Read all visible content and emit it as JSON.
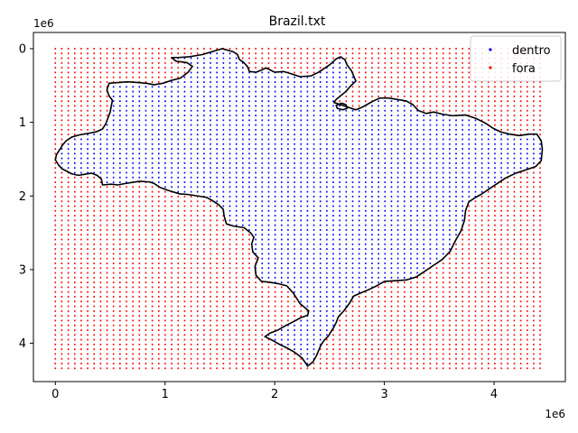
{
  "chart_data": {
    "type": "scatter",
    "title": "Brazil.txt",
    "xlabel": "",
    "ylabel": "",
    "xlim": [
      -200000,
      4650000
    ],
    "ylim": [
      4520000,
      -220000
    ],
    "y_inverted": true,
    "x_ticks": [
      0,
      1,
      2,
      3,
      4
    ],
    "y_ticks": [
      0,
      1,
      2,
      3,
      4
    ],
    "x_multiplier": "1e6",
    "y_multiplier": "1e6",
    "grid": false,
    "legend_position": "top-right",
    "grid_points": {
      "x_start": 0,
      "x_end": 4420000,
      "x_count": 76,
      "y_start": 0,
      "y_end": 4340000,
      "y_count": 68
    },
    "series": [
      {
        "name": "dentro",
        "color": "#0000ff",
        "marker": "point"
      },
      {
        "name": "fora",
        "color": "#ff0000",
        "marker": "point"
      }
    ],
    "boundary_color": "#000000",
    "boundary": [
      [
        1520000,
        0
      ],
      [
        1620000,
        40000
      ],
      [
        1660000,
        80000
      ],
      [
        1680000,
        150000
      ],
      [
        1720000,
        190000
      ],
      [
        1750000,
        240000
      ],
      [
        1770000,
        310000
      ],
      [
        1830000,
        320000
      ],
      [
        1880000,
        290000
      ],
      [
        1920000,
        260000
      ],
      [
        1960000,
        290000
      ],
      [
        2000000,
        320000
      ],
      [
        2080000,
        310000
      ],
      [
        2150000,
        340000
      ],
      [
        2230000,
        380000
      ],
      [
        2330000,
        370000
      ],
      [
        2400000,
        320000
      ],
      [
        2500000,
        220000
      ],
      [
        2560000,
        140000
      ],
      [
        2600000,
        110000
      ],
      [
        2640000,
        150000
      ],
      [
        2660000,
        220000
      ],
      [
        2700000,
        300000
      ],
      [
        2740000,
        440000
      ],
      [
        2690000,
        510000
      ],
      [
        2650000,
        580000
      ],
      [
        2600000,
        640000
      ],
      [
        2560000,
        690000
      ],
      [
        2540000,
        730000
      ],
      [
        2600000,
        760000
      ],
      [
        2660000,
        790000
      ],
      [
        2700000,
        810000
      ],
      [
        2740000,
        830000
      ],
      [
        2790000,
        800000
      ],
      [
        2840000,
        760000
      ],
      [
        2900000,
        710000
      ],
      [
        2960000,
        670000
      ],
      [
        3040000,
        670000
      ],
      [
        3120000,
        690000
      ],
      [
        3200000,
        710000
      ],
      [
        3260000,
        760000
      ],
      [
        3310000,
        840000
      ],
      [
        3380000,
        880000
      ],
      [
        3450000,
        860000
      ],
      [
        3530000,
        890000
      ],
      [
        3620000,
        910000
      ],
      [
        3740000,
        900000
      ],
      [
        3840000,
        950000
      ],
      [
        3920000,
        1010000
      ],
      [
        3990000,
        1080000
      ],
      [
        4060000,
        1130000
      ],
      [
        4140000,
        1160000
      ],
      [
        4230000,
        1180000
      ],
      [
        4320000,
        1160000
      ],
      [
        4390000,
        1160000
      ],
      [
        4430000,
        1250000
      ],
      [
        4440000,
        1370000
      ],
      [
        4430000,
        1520000
      ],
      [
        4380000,
        1600000
      ],
      [
        4300000,
        1640000
      ],
      [
        4200000,
        1690000
      ],
      [
        4100000,
        1760000
      ],
      [
        4020000,
        1840000
      ],
      [
        3940000,
        1920000
      ],
      [
        3880000,
        1980000
      ],
      [
        3830000,
        2020000
      ],
      [
        3770000,
        2080000
      ],
      [
        3740000,
        2200000
      ],
      [
        3730000,
        2330000
      ],
      [
        3700000,
        2470000
      ],
      [
        3650000,
        2600000
      ],
      [
        3600000,
        2750000
      ],
      [
        3530000,
        2860000
      ],
      [
        3450000,
        2940000
      ],
      [
        3370000,
        3020000
      ],
      [
        3290000,
        3100000
      ],
      [
        3200000,
        3140000
      ],
      [
        3100000,
        3150000
      ],
      [
        3000000,
        3160000
      ],
      [
        2930000,
        3220000
      ],
      [
        2860000,
        3270000
      ],
      [
        2780000,
        3320000
      ],
      [
        2720000,
        3360000
      ],
      [
        2680000,
        3460000
      ],
      [
        2630000,
        3560000
      ],
      [
        2580000,
        3640000
      ],
      [
        2560000,
        3720000
      ],
      [
        2540000,
        3780000
      ],
      [
        2510000,
        3850000
      ],
      [
        2490000,
        3900000
      ],
      [
        2450000,
        3960000
      ],
      [
        2420000,
        4030000
      ],
      [
        2400000,
        4100000
      ],
      [
        2380000,
        4170000
      ],
      [
        2350000,
        4250000
      ],
      [
        2300000,
        4310000
      ],
      [
        2250000,
        4200000
      ],
      [
        2180000,
        4120000
      ],
      [
        2120000,
        4070000
      ],
      [
        2050000,
        4020000
      ],
      [
        1980000,
        3960000
      ],
      [
        1910000,
        3910000
      ],
      [
        1960000,
        3860000
      ],
      [
        2030000,
        3820000
      ],
      [
        2100000,
        3760000
      ],
      [
        2180000,
        3700000
      ],
      [
        2240000,
        3650000
      ],
      [
        2300000,
        3620000
      ],
      [
        2310000,
        3560000
      ],
      [
        2270000,
        3510000
      ],
      [
        2230000,
        3460000
      ],
      [
        2200000,
        3390000
      ],
      [
        2170000,
        3320000
      ],
      [
        2140000,
        3270000
      ],
      [
        2110000,
        3220000
      ],
      [
        2030000,
        3190000
      ],
      [
        1950000,
        3170000
      ],
      [
        1880000,
        3160000
      ],
      [
        1830000,
        3080000
      ],
      [
        1820000,
        2960000
      ],
      [
        1850000,
        2840000
      ],
      [
        1800000,
        2760000
      ],
      [
        1790000,
        2650000
      ],
      [
        1810000,
        2560000
      ],
      [
        1780000,
        2500000
      ],
      [
        1720000,
        2430000
      ],
      [
        1630000,
        2410000
      ],
      [
        1560000,
        2380000
      ],
      [
        1540000,
        2280000
      ],
      [
        1530000,
        2180000
      ],
      [
        1490000,
        2120000
      ],
      [
        1430000,
        2060000
      ],
      [
        1380000,
        2020000
      ],
      [
        1300000,
        2000000
      ],
      [
        1210000,
        1980000
      ],
      [
        1130000,
        1970000
      ],
      [
        1020000,
        1920000
      ],
      [
        950000,
        1880000
      ],
      [
        900000,
        1830000
      ],
      [
        860000,
        1810000
      ],
      [
        770000,
        1800000
      ],
      [
        640000,
        1830000
      ],
      [
        570000,
        1850000
      ],
      [
        510000,
        1840000
      ],
      [
        430000,
        1850000
      ],
      [
        420000,
        1770000
      ],
      [
        380000,
        1720000
      ],
      [
        330000,
        1690000
      ],
      [
        250000,
        1710000
      ],
      [
        210000,
        1720000
      ],
      [
        150000,
        1700000
      ],
      [
        100000,
        1660000
      ],
      [
        60000,
        1630000
      ],
      [
        30000,
        1580000
      ],
      [
        0,
        1510000
      ],
      [
        10000,
        1440000
      ],
      [
        40000,
        1370000
      ],
      [
        70000,
        1300000
      ],
      [
        100000,
        1250000
      ],
      [
        150000,
        1200000
      ],
      [
        220000,
        1170000
      ],
      [
        300000,
        1150000
      ],
      [
        370000,
        1130000
      ],
      [
        430000,
        1090000
      ],
      [
        460000,
        1020000
      ],
      [
        480000,
        940000
      ],
      [
        500000,
        860000
      ],
      [
        510000,
        780000
      ],
      [
        520000,
        700000
      ],
      [
        490000,
        640000
      ],
      [
        470000,
        560000
      ],
      [
        490000,
        470000
      ],
      [
        570000,
        460000
      ],
      [
        660000,
        450000
      ],
      [
        760000,
        460000
      ],
      [
        830000,
        470000
      ],
      [
        900000,
        490000
      ],
      [
        980000,
        470000
      ],
      [
        1060000,
        430000
      ],
      [
        1140000,
        400000
      ],
      [
        1210000,
        320000
      ],
      [
        1250000,
        240000
      ],
      [
        1200000,
        190000
      ],
      [
        1100000,
        170000
      ],
      [
        1060000,
        120000
      ],
      [
        1120000,
        120000
      ],
      [
        1220000,
        110000
      ],
      [
        1340000,
        80000
      ],
      [
        1430000,
        40000
      ],
      [
        1520000,
        0
      ]
    ],
    "boundary_island": [
      [
        2560000,
        770000
      ],
      [
        2610000,
        740000
      ],
      [
        2650000,
        760000
      ],
      [
        2660000,
        810000
      ],
      [
        2620000,
        830000
      ],
      [
        2570000,
        810000
      ],
      [
        2560000,
        770000
      ]
    ]
  }
}
